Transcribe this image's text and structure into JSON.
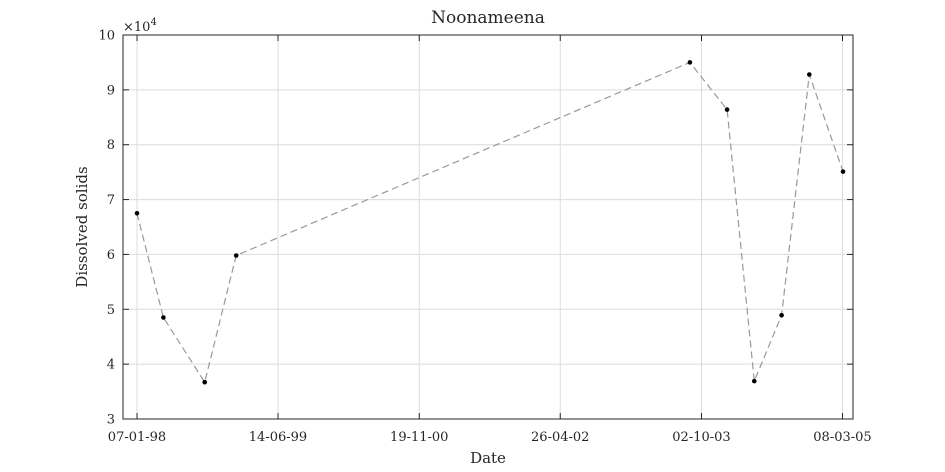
{
  "chart_data": {
    "type": "line",
    "title": "Noonameena",
    "xlabel": "Date",
    "ylabel": "Dissolved solids",
    "y_exponent_label": "×10",
    "y_exponent_power": "4",
    "y_multiplier": 10000,
    "xlim": [
      "1997-11-16",
      "2005-04-16"
    ],
    "ylim": [
      30000,
      100000
    ],
    "x_ticks": [
      {
        "date": "1998-01-07",
        "label": "07-01-98"
      },
      {
        "date": "1999-06-14",
        "label": "14-06-99"
      },
      {
        "date": "2000-11-19",
        "label": "19-11-00"
      },
      {
        "date": "2002-04-26",
        "label": "26-04-02"
      },
      {
        "date": "2003-10-02",
        "label": "02-10-03"
      },
      {
        "date": "2005-03-08",
        "label": "08-03-05"
      }
    ],
    "y_ticks": [
      {
        "value": 30000,
        "label": "3"
      },
      {
        "value": 40000,
        "label": "4"
      },
      {
        "value": 50000,
        "label": "5"
      },
      {
        "value": 60000,
        "label": "6"
      },
      {
        "value": 70000,
        "label": "7"
      },
      {
        "value": 80000,
        "label": "8"
      },
      {
        "value": 90000,
        "label": "9"
      },
      {
        "value": 100000,
        "label": "10"
      }
    ],
    "grid": true,
    "line_style": "dashed",
    "line_color": "#999999",
    "marker_color": "#000000",
    "series": [
      {
        "points": [
          {
            "x": "1998-01-07",
            "y": 67500
          },
          {
            "x": "1998-04-15",
            "y": 48500
          },
          {
            "x": "1998-09-15",
            "y": 36700
          },
          {
            "x": "1999-01-10",
            "y": 59800
          },
          {
            "x": "2003-08-20",
            "y": 95000
          },
          {
            "x": "2004-01-05",
            "y": 86400
          },
          {
            "x": "2004-04-15",
            "y": 36900
          },
          {
            "x": "2004-07-25",
            "y": 48900
          },
          {
            "x": "2004-11-05",
            "y": 92800
          },
          {
            "x": "2005-03-10",
            "y": 75100
          }
        ]
      }
    ]
  }
}
